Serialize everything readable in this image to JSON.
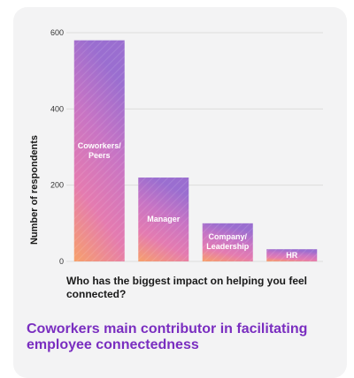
{
  "chart_data": {
    "type": "bar",
    "y_label": "Number of respondents",
    "x_label": "Who has the biggest impact on helping you feel connected?",
    "categories": [
      "Coworkers/ Peers",
      "Manager",
      "Company/ Leadership",
      "HR"
    ],
    "values": [
      580,
      220,
      100,
      32
    ],
    "gradient": [
      "#f7a06a",
      "#e47bb0",
      "#c874c4",
      "#9a6ed0"
    ],
    "ylim": [
      0,
      600
    ],
    "yticks": [
      0,
      200,
      400,
      600
    ],
    "grid": true
  },
  "caption": "Coworkers main contributor in facilitating employee connectedness"
}
